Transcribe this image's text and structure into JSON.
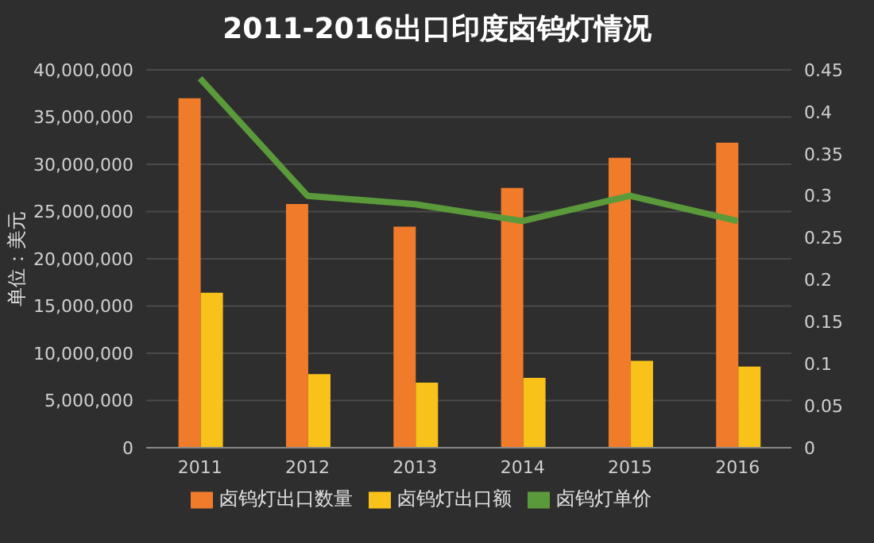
{
  "chart_data": {
    "type": "bar",
    "title": "2011-2016出口印度卤钨灯情况",
    "ylabel": "单位：美元",
    "categories": [
      "2011",
      "2012",
      "2013",
      "2014",
      "2015",
      "2016"
    ],
    "series": [
      {
        "name": "卤钨灯出口数量",
        "color": "#f07b2a",
        "values": [
          37000000,
          25800000,
          23400000,
          27500000,
          30700000,
          32300000
        ]
      },
      {
        "name": "卤钨灯出口额",
        "color": "#f8c21a",
        "values": [
          16400000,
          7800000,
          6900000,
          7400000,
          9200000,
          8600000
        ]
      },
      {
        "name": "卤钨灯单价",
        "type": "line",
        "axis": "y2",
        "color": "#5a9a3a",
        "values": [
          0.44,
          0.3,
          0.29,
          0.27,
          0.3,
          0.27
        ]
      }
    ],
    "ylim": [
      0,
      40000000
    ],
    "yticks": [
      0,
      {
        "value": 5000000,
        "label": "5,000,000"
      },
      {
        "value": 10000000,
        "label": "10,000,000"
      },
      {
        "value": 15000000,
        "label": "15,000,000"
      },
      {
        "value": 20000000,
        "label": "20,000,000"
      },
      {
        "value": 25000000,
        "label": "25,000,000"
      },
      {
        "value": 30000000,
        "label": "30,000,000"
      },
      {
        "value": 35000000,
        "label": "35,000,000"
      },
      {
        "value": 40000000,
        "label": "40,000,000"
      }
    ],
    "y2lim": [
      0,
      0.45
    ],
    "y2ticks": [
      0,
      0.05,
      0.1,
      0.15,
      0.2,
      0.25,
      0.3,
      0.35,
      0.4,
      0.45
    ],
    "grid": "y",
    "legend": "bottom",
    "marker": "none"
  }
}
